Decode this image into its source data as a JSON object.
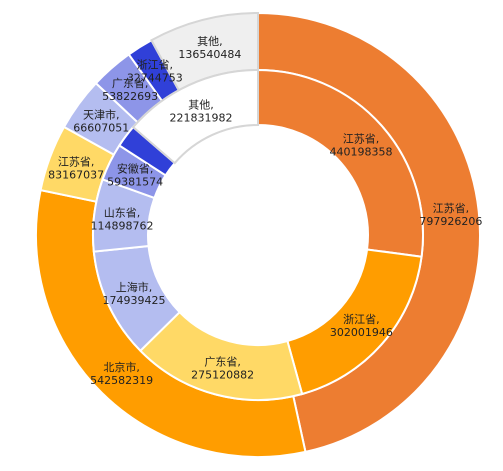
{
  "chart_data": {
    "type": "pie",
    "title": "",
    "series": [
      {
        "ring": "outer",
        "slices": [
          {
            "label": "江苏省",
            "value": 797926206,
            "color": "#ed7d31"
          },
          {
            "label": "北京市",
            "value": 542582319,
            "color": "#ff9d00"
          },
          {
            "label": "江苏省",
            "value": 83167037,
            "color": "#ffd966"
          },
          {
            "label": "天津市",
            "value": 66607051,
            "color": "#b4bdf0"
          },
          {
            "label": "广东省",
            "value": 53822693,
            "color": "#8d95e8"
          },
          {
            "label": "浙江省",
            "value": 32744753,
            "color": "#3040d8"
          },
          {
            "label": "其他",
            "value": 136540484,
            "color": "#efefef"
          }
        ]
      },
      {
        "ring": "inner",
        "slices": [
          {
            "label": "江苏省",
            "value": 440198358,
            "color": "#ed7d31"
          },
          {
            "label": "浙江省",
            "value": 302001946,
            "color": "#ff9d00"
          },
          {
            "label": "广东省",
            "value": 275120882,
            "color": "#ffd966"
          },
          {
            "label": "上海市",
            "value": 174939425,
            "color": "#b4bdf0"
          },
          {
            "label": "山东省",
            "value": 114898762,
            "color": "#b4bdf0"
          },
          {
            "label": "安徽省",
            "value": 59381574,
            "color": "#8d95e8"
          },
          {
            "label": "",
            "value": 36000000,
            "color": "#3040d8"
          },
          {
            "label": "其他",
            "value": 221831982,
            "color": "#ffffff"
          }
        ]
      }
    ]
  }
}
